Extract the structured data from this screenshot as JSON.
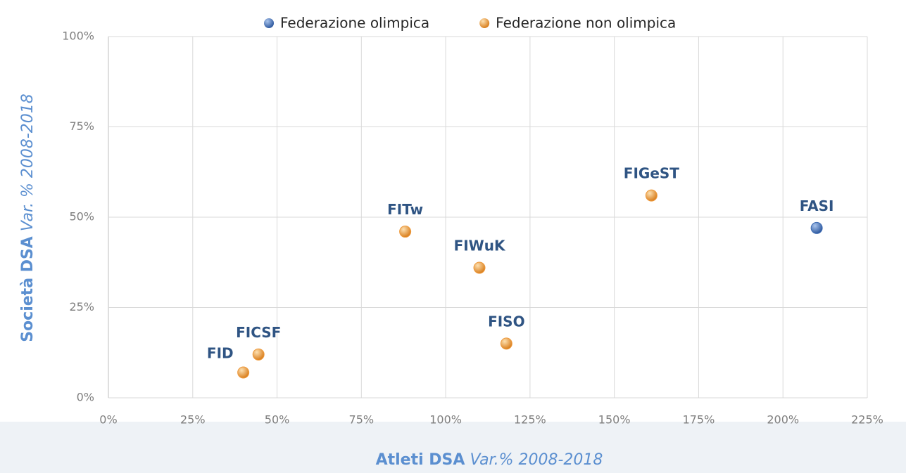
{
  "chart_data": {
    "type": "scatter",
    "xlabel": "Atleti DSA",
    "xlabel_note": "Var.% 2008-2018",
    "ylabel": "Società DSA",
    "ylabel_note": "Var. % 2008-2018",
    "xlim": [
      0,
      225
    ],
    "xticks": [
      {
        "value": 0,
        "label": "0%"
      },
      {
        "value": 25,
        "label": "25%"
      },
      {
        "value": 50,
        "label": "50%"
      },
      {
        "value": 75,
        "label": "75%"
      },
      {
        "value": 100,
        "label": "100%"
      },
      {
        "value": 125,
        "label": "125%"
      },
      {
        "value": 150,
        "label": "150%"
      },
      {
        "value": 175,
        "label": "175%"
      },
      {
        "value": 200,
        "label": "200%"
      },
      {
        "value": 225,
        "label": "225%"
      }
    ],
    "ylim": [
      0,
      100
    ],
    "yticks": [
      {
        "value": 0,
        "label": "0%"
      },
      {
        "value": 25,
        "label": "25%"
      },
      {
        "value": 50,
        "label": "50%"
      },
      {
        "value": 75,
        "label": "75%"
      },
      {
        "value": 100,
        "label": "100%"
      }
    ],
    "grid": true,
    "legend": "top",
    "series": [
      {
        "name": "Federazione olimpica",
        "color": "#3d6bb3",
        "x": [
          210
        ],
        "values": [
          47
        ],
        "labels": [
          "FASI"
        ]
      },
      {
        "name": "Federazione non olimpica",
        "color": "#ef9a3c",
        "x": [
          161,
          88,
          110,
          118,
          44.5,
          40
        ],
        "values": [
          56,
          46,
          36,
          15,
          12,
          7
        ],
        "labels": [
          "FIGeST",
          "FITw",
          "FIWuK",
          "FISO",
          "FICSF",
          "FID"
        ]
      }
    ]
  }
}
